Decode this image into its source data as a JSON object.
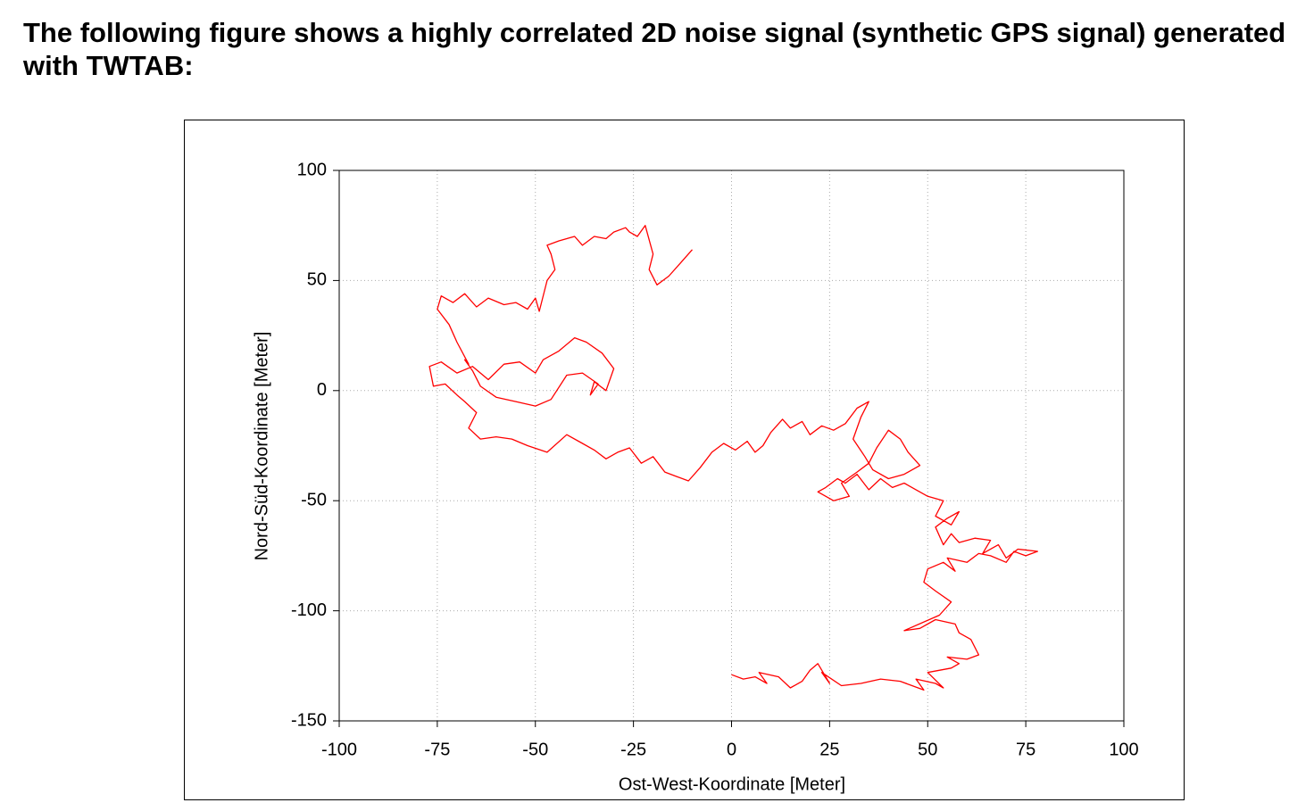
{
  "heading": "The following figure shows a highly correlated 2D noise signal (synthetic GPS signal) generated with TWTAB:",
  "chart_data": {
    "type": "line",
    "xlabel": "Ost-West-Koordinate [Meter]",
    "ylabel": "Nord-Süd-Koordinate [Meter]",
    "xlim": [
      -100,
      100
    ],
    "xticks": [
      -100,
      -75,
      -50,
      -25,
      0,
      25,
      50,
      75,
      100
    ],
    "ylim": [
      -150,
      100
    ],
    "yticks": [
      -150,
      -100,
      -50,
      0,
      50,
      100
    ],
    "grid": true,
    "series": [
      {
        "color": "#ff0000",
        "x": [
          0,
          3,
          6,
          9,
          7,
          12,
          15,
          18,
          20,
          22,
          25,
          23,
          28,
          33,
          38,
          43,
          46,
          49,
          47,
          52,
          54,
          50,
          56,
          58,
          55,
          60,
          63,
          61,
          58,
          57,
          52,
          48,
          44,
          53,
          56,
          52,
          49,
          50,
          54,
          57,
          55,
          60,
          63,
          66,
          70,
          72,
          75,
          78,
          73,
          70,
          68,
          64,
          66,
          62,
          58,
          56,
          54,
          52,
          55,
          58,
          56,
          52,
          54,
          50,
          47,
          44,
          41,
          38,
          35,
          32,
          29,
          27,
          24,
          22,
          26,
          30,
          28,
          32,
          35,
          37,
          40,
          43,
          45,
          48,
          44,
          40,
          36,
          34,
          31,
          33,
          35,
          32,
          29,
          26,
          23,
          20,
          18,
          15,
          13,
          10,
          8,
          6,
          4,
          1,
          -2,
          -5,
          -8,
          -11,
          -14,
          -17,
          -20,
          -23,
          -26,
          -29,
          -32,
          -35,
          -38,
          -42,
          -47,
          -52,
          -56,
          -60,
          -64,
          -67,
          -65,
          -68,
          -70,
          -73,
          -76,
          -77,
          -74,
          -70,
          -66,
          -62,
          -58,
          -54,
          -50,
          -48,
          -44,
          -40,
          -37,
          -33,
          -30,
          -32,
          -35,
          -36,
          -34,
          -38,
          -42,
          -46,
          -50,
          -55,
          -60,
          -64,
          -66,
          -68,
          -67,
          -70,
          -72,
          -75,
          -74,
          -71,
          -68,
          -65,
          -62,
          -58,
          -55,
          -52,
          -50,
          -49,
          -47,
          -45,
          -46,
          -47,
          -44,
          -40,
          -38,
          -35,
          -32,
          -30,
          -27,
          -26,
          -24,
          -22,
          -20,
          -21,
          -19,
          -16,
          -13,
          -10
        ],
        "values": [
          -129,
          -131,
          -130,
          -133,
          -128,
          -130,
          -135,
          -132,
          -127,
          -124,
          -133,
          -128,
          -134,
          -133,
          -131,
          -132,
          -134,
          -136,
          -131,
          -133,
          -135,
          -128,
          -126,
          -124,
          -121,
          -122,
          -120,
          -113,
          -110,
          -106,
          -104,
          -108,
          -109,
          -102,
          -96,
          -91,
          -87,
          -81,
          -78,
          -82,
          -76,
          -78,
          -74,
          -75,
          -78,
          -73,
          -75,
          -73,
          -72,
          -76,
          -70,
          -74,
          -68,
          -67,
          -69,
          -65,
          -70,
          -62,
          -58,
          -55,
          -61,
          -57,
          -50,
          -48,
          -45,
          -42,
          -44,
          -40,
          -45,
          -38,
          -42,
          -40,
          -44,
          -46,
          -50,
          -48,
          -42,
          -37,
          -33,
          -26,
          -18,
          -22,
          -28,
          -34,
          -38,
          -40,
          -36,
          -30,
          -22,
          -12,
          -5,
          -8,
          -15,
          -18,
          -16,
          -20,
          -14,
          -17,
          -13,
          -19,
          -25,
          -28,
          -23,
          -27,
          -24,
          -28,
          -35,
          -41,
          -39,
          -37,
          -30,
          -33,
          -26,
          -28,
          -31,
          -27,
          -24,
          -20,
          -28,
          -25,
          -22,
          -21,
          -22,
          -17,
          -10,
          -5,
          -2,
          3,
          2,
          11,
          13,
          8,
          11,
          5,
          12,
          13,
          8,
          14,
          18,
          24,
          22,
          17,
          10,
          0,
          4,
          -2,
          3,
          8,
          7,
          -4,
          -7,
          -5,
          -3,
          2,
          9,
          14,
          12,
          22,
          30,
          37,
          43,
          40,
          44,
          38,
          42,
          39,
          40,
          37,
          42,
          36,
          50,
          55,
          62,
          66,
          68,
          70,
          66,
          70,
          69,
          72,
          74,
          72,
          70,
          75,
          62,
          55,
          48,
          52,
          58,
          64
        ]
      }
    ]
  }
}
